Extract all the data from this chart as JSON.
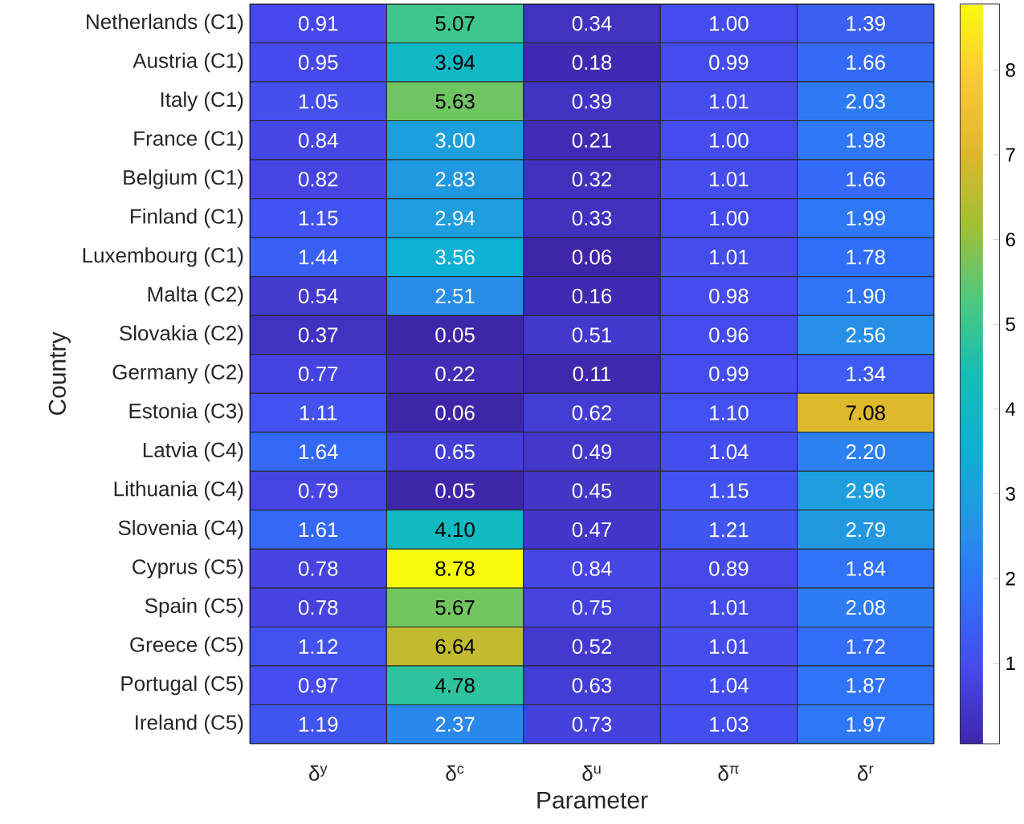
{
  "chart_data": {
    "type": "heatmap",
    "xlabel": "Parameter",
    "ylabel": "Country",
    "categories": [
      "δ$^{y}$",
      "δ$^{c}$",
      "δ$^{u}$",
      "δ$^{π}$",
      "δ$^{r}$"
    ],
    "y_categories": [
      "Netherlands (C1)",
      "Austria (C1)",
      "Italy (C1)",
      "France (C1)",
      "Belgium (C1)",
      "Finland (C1)",
      "Luxembourg (C1)",
      "Malta (C2)",
      "Slovakia (C2)",
      "Germany (C2)",
      "Estonia (C3)",
      "Latvia (C4)",
      "Lithuania (C4)",
      "Slovenia (C4)",
      "Cyprus (C5)",
      "Spain (C5)",
      "Greece (C5)",
      "Portugal (C5)",
      "Ireland (C5)"
    ],
    "cells": [
      [
        0.91,
        5.07,
        0.34,
        1.0,
        1.39
      ],
      [
        0.95,
        3.94,
        0.18,
        0.99,
        1.66
      ],
      [
        1.05,
        5.63,
        0.39,
        1.01,
        2.03
      ],
      [
        0.84,
        3.0,
        0.21,
        1.0,
        1.98
      ],
      [
        0.82,
        2.83,
        0.32,
        1.01,
        1.66
      ],
      [
        1.15,
        2.94,
        0.33,
        1.0,
        1.99
      ],
      [
        1.44,
        3.56,
        0.06,
        1.01,
        1.78
      ],
      [
        0.54,
        2.51,
        0.16,
        0.98,
        1.9
      ],
      [
        0.37,
        0.05,
        0.51,
        0.96,
        2.56
      ],
      [
        0.77,
        0.22,
        0.11,
        0.99,
        1.34
      ],
      [
        1.11,
        0.06,
        0.62,
        1.1,
        7.08
      ],
      [
        1.64,
        0.65,
        0.49,
        1.04,
        2.2
      ],
      [
        0.79,
        0.05,
        0.45,
        1.15,
        2.96
      ],
      [
        1.61,
        4.1,
        0.47,
        1.21,
        2.79
      ],
      [
        0.78,
        8.78,
        0.84,
        0.89,
        1.84
      ],
      [
        0.78,
        5.67,
        0.75,
        1.01,
        2.08
      ],
      [
        1.12,
        6.64,
        0.52,
        1.01,
        1.72
      ],
      [
        0.97,
        4.78,
        0.63,
        1.04,
        1.87
      ],
      [
        1.19,
        2.37,
        0.73,
        1.03,
        1.97
      ]
    ],
    "cell_labels": [
      [
        "0.91",
        "5.07",
        "0.34",
        "1.00",
        "1.39"
      ],
      [
        "0.95",
        "3.94",
        "0.18",
        "0.99",
        "1.66"
      ],
      [
        "1.05",
        "5.63",
        "0.39",
        "1.01",
        "2.03"
      ],
      [
        "0.84",
        "3.00",
        "0.21",
        "1.00",
        "1.98"
      ],
      [
        "0.82",
        "2.83",
        "0.32",
        "1.01",
        "1.66"
      ],
      [
        "1.15",
        "2.94",
        "0.33",
        "1.00",
        "1.99"
      ],
      [
        "1.44",
        "3.56",
        "0.06",
        "1.01",
        "1.78"
      ],
      [
        "0.54",
        "2.51",
        "0.16",
        "0.98",
        "1.90"
      ],
      [
        "0.37",
        "0.05",
        "0.51",
        "0.96",
        "2.56"
      ],
      [
        "0.77",
        "0.22",
        "0.11",
        "0.99",
        "1.34"
      ],
      [
        "1.11",
        "0.06",
        "0.62",
        "1.10",
        "7.08"
      ],
      [
        "1.64",
        "0.65",
        "0.49",
        "1.04",
        "2.20"
      ],
      [
        "0.79",
        "0.05",
        "0.45",
        "1.15",
        "2.96"
      ],
      [
        "1.61",
        "4.10",
        "0.47",
        "1.21",
        "2.79"
      ],
      [
        "0.78",
        "8.78",
        "0.84",
        "0.89",
        "1.84"
      ],
      [
        "0.78",
        "5.67",
        "0.75",
        "1.01",
        "2.08"
      ],
      [
        "1.12",
        "6.64",
        "0.52",
        "1.01",
        "1.72"
      ],
      [
        "0.97",
        "4.78",
        "0.63",
        "1.04",
        "1.87"
      ],
      [
        "1.19",
        "2.37",
        "0.73",
        "1.03",
        "1.97"
      ]
    ],
    "clim": [
      0.05,
      8.78
    ],
    "cticks": [
      1,
      2,
      3,
      4,
      5,
      6,
      7,
      8
    ]
  }
}
